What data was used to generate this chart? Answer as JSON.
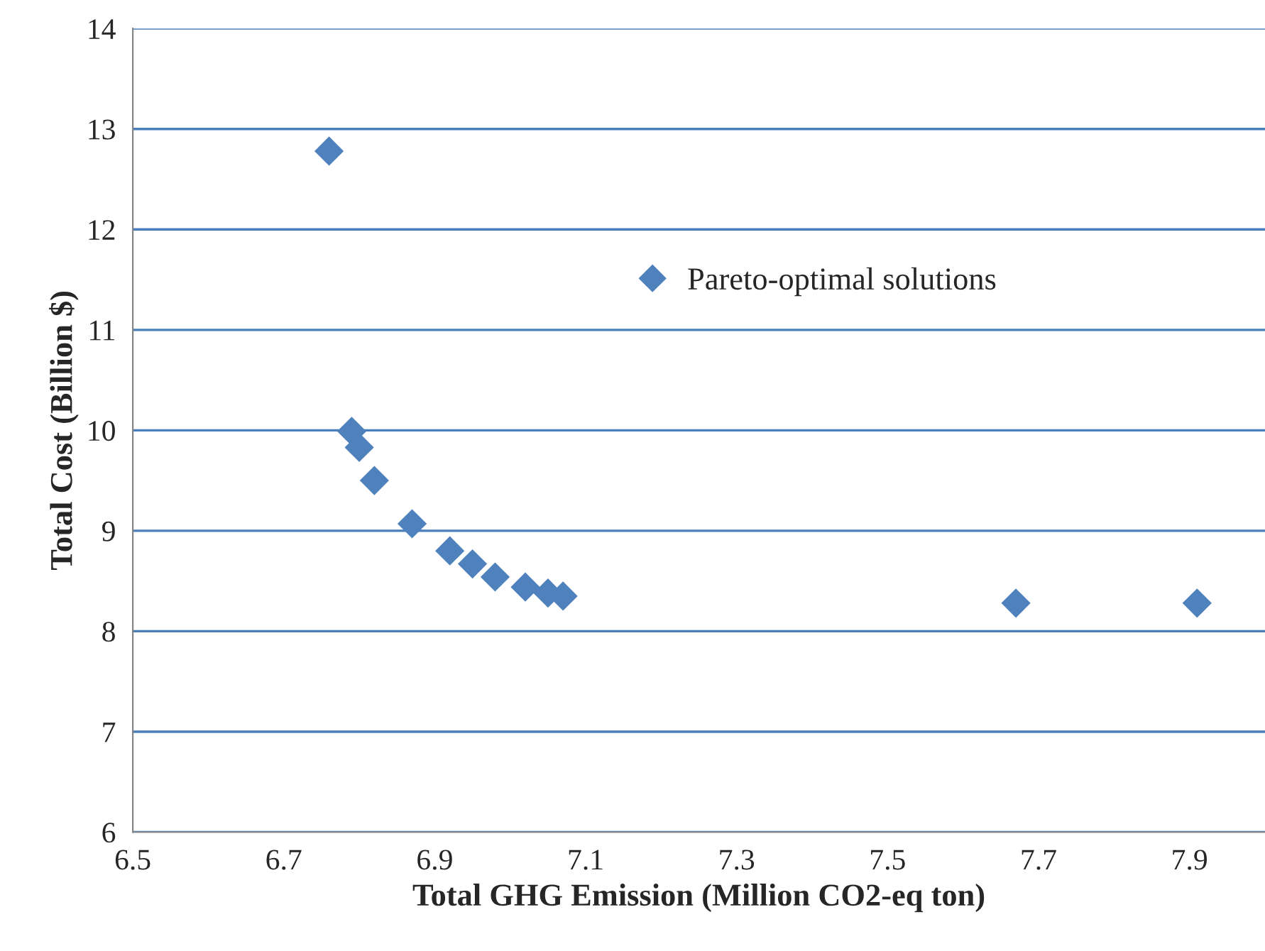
{
  "chart_data": {
    "type": "scatter",
    "xlabel": "Total GHG Emission (Million CO2-eq ton)",
    "ylabel": "Total Cost (Billion $)",
    "series": [
      {
        "name": "Pareto-optimal solutions",
        "color": "#4f81bd",
        "x": [
          6.76,
          6.79,
          6.8,
          6.82,
          6.87,
          6.92,
          6.95,
          6.98,
          7.02,
          7.05,
          7.07,
          7.67,
          7.91
        ],
        "values": [
          12.78,
          9.99,
          9.83,
          9.5,
          9.07,
          8.8,
          8.67,
          8.54,
          8.44,
          8.38,
          8.35,
          8.28,
          8.28
        ]
      }
    ],
    "xlim": [
      6.5,
      8.0
    ],
    "xticks": [
      6.5,
      6.7,
      6.9,
      7.1,
      7.3,
      7.5,
      7.7,
      7.9
    ],
    "ylim": [
      6,
      14
    ],
    "yticks": [
      6,
      7,
      8,
      9,
      10,
      11,
      12,
      13,
      14
    ],
    "grid": "y",
    "legend": "top right",
    "marker": "diamond"
  }
}
